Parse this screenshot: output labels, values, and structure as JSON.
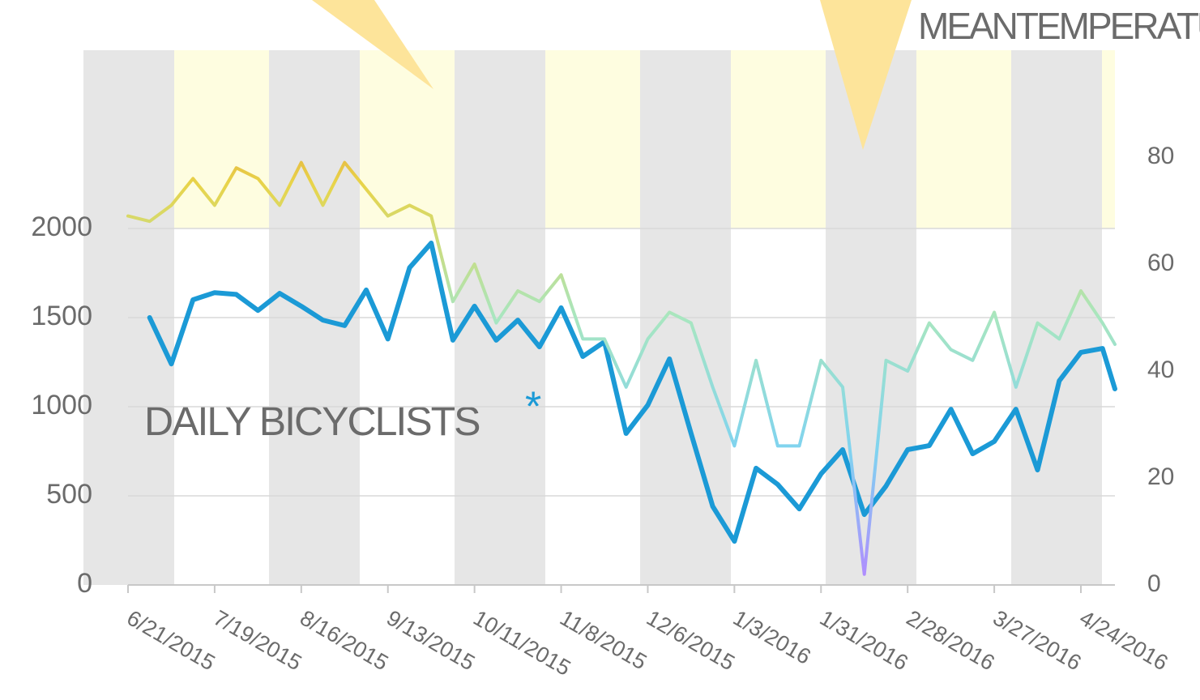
{
  "chart_data": {
    "type": "line",
    "annotations": [
      "MEANTEMPERATURE",
      "DAILY BICYCLISTS",
      "*"
    ],
    "x": [
      "6/21/2015",
      "6/28/2015",
      "7/5/2015",
      "7/12/2015",
      "7/19/2015",
      "7/26/2015",
      "8/2/2015",
      "8/9/2015",
      "8/16/2015",
      "8/23/2015",
      "8/30/2015",
      "9/6/2015",
      "9/13/2015",
      "9/20/2015",
      "9/27/2015",
      "10/4/2015",
      "10/11/2015",
      "10/18/2015",
      "10/25/2015",
      "11/1/2015",
      "11/8/2015",
      "11/15/2015",
      "11/22/2015",
      "11/29/2015",
      "12/6/2015",
      "12/13/2015",
      "12/20/2015",
      "12/27/2015",
      "1/3/2016",
      "1/10/2016",
      "1/17/2016",
      "1/24/2016",
      "1/31/2016",
      "2/7/2016",
      "2/14/2016",
      "2/21/2016",
      "2/28/2016",
      "3/6/2016",
      "3/13/2016",
      "3/20/2016",
      "3/27/2016",
      "4/3/2016",
      "4/10/2016",
      "4/17/2016",
      "4/24/2016",
      "5/1/2016",
      "5/5/2016"
    ],
    "series": [
      {
        "name": "DAILY BICYCLISTS",
        "color": "#1b9ad6",
        "axis": "y",
        "values": [
          null,
          1500,
          1240,
          1600,
          1640,
          1630,
          1540,
          1636,
          1564,
          1486,
          1455,
          1655,
          1380,
          1780,
          1918,
          1373,
          1564,
          1373,
          1486,
          1336,
          1555,
          1282,
          1364,
          850,
          1009,
          1268,
          850,
          441,
          245,
          655,
          564,
          427,
          623,
          759,
          395,
          555,
          759,
          782,
          986,
          736,
          805,
          986,
          645,
          1145,
          1305,
          1327,
          1100
        ]
      },
      {
        "name": "MEANTEMPERATURE",
        "axis": "y2",
        "color_scale": [
          "#b388ff",
          "#7fd3f0",
          "#a8e6c0",
          "#e8d44a",
          "#e0602a"
        ],
        "values": [
          69,
          68,
          71,
          76,
          71,
          78,
          76,
          71,
          79,
          71,
          79,
          74,
          69,
          71,
          69,
          53,
          60,
          49,
          55,
          53,
          58,
          46,
          46,
          37,
          46,
          51,
          49,
          37,
          26,
          42,
          26,
          26,
          42,
          37,
          2,
          42,
          40,
          49,
          44,
          42,
          51,
          37,
          49,
          46,
          55,
          49,
          45
        ]
      }
    ],
    "xlim": [
      "6/21/2015",
      "5/5/2016"
    ],
    "xticks": [
      "6/21/2015",
      "7/19/2015",
      "8/16/2015",
      "9/13/2015",
      "10/11/2015",
      "11/8/2015",
      "12/6/2015",
      "1/3/2016",
      "1/31/2016",
      "2/28/2016",
      "3/27/2016",
      "4/24/2016"
    ],
    "ylim": [
      0,
      3000
    ],
    "yticks": [
      0,
      500,
      1000,
      1500,
      2000
    ],
    "y2lim": [
      0,
      100
    ],
    "y2ticks": [
      0,
      20,
      40,
      60,
      80
    ],
    "grid": true
  }
}
